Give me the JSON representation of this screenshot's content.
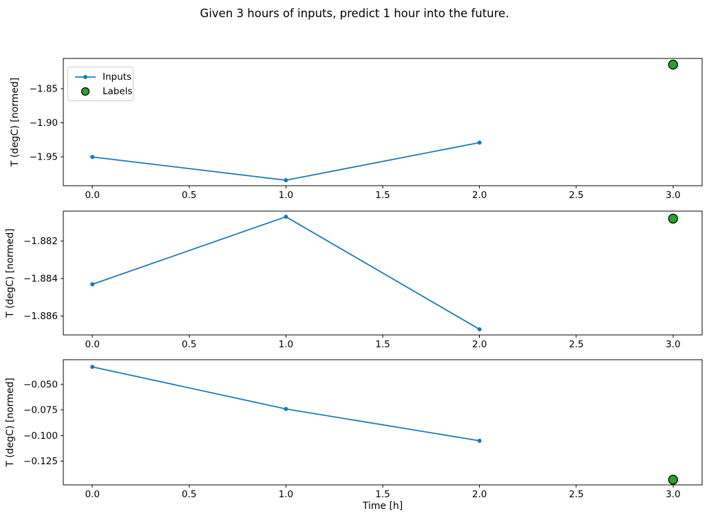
{
  "title": "Given 3 hours of inputs, predict 1 hour into the future.",
  "xlabel": "Time [h]",
  "colors": {
    "inputs_line": "#1f77b4",
    "labels_fill": "#2ca02c",
    "labels_edge": "#000000",
    "axis": "#000000"
  },
  "legend": {
    "items": [
      {
        "label": "Inputs",
        "marker": "line-with-dot"
      },
      {
        "label": "Labels",
        "marker": "circle"
      }
    ]
  },
  "chart_data": [
    {
      "type": "line",
      "panel": "top",
      "ylabel": "T (degC) [normed]",
      "x": [
        0,
        1,
        2
      ],
      "series": [
        {
          "name": "Inputs",
          "values": [
            -1.95,
            -1.984,
            -1.929
          ]
        }
      ],
      "label_point": {
        "name": "Labels",
        "x": 3,
        "y": -1.815
      },
      "xlim": [
        -0.15,
        3.15
      ],
      "ylim": [
        -1.992,
        -1.806
      ],
      "xticks": [
        0.0,
        0.5,
        1.0,
        1.5,
        2.0,
        2.5,
        3.0
      ],
      "xtick_labels": [
        "0.0",
        "0.5",
        "1.0",
        "1.5",
        "2.0",
        "2.5",
        "3.0"
      ],
      "yticks": [
        -1.85,
        -1.9,
        -1.95
      ],
      "ytick_labels": [
        "−1.85",
        "−1.90",
        "−1.95"
      ],
      "grid": false,
      "legend_position": "upper-left"
    },
    {
      "type": "line",
      "panel": "middle",
      "ylabel": "T (degC) [normed]",
      "x": [
        0,
        1,
        2
      ],
      "series": [
        {
          "name": "Inputs",
          "values": [
            -1.8843,
            -1.8807,
            -1.8867
          ]
        }
      ],
      "label_point": {
        "name": "Labels",
        "x": 3,
        "y": -1.8808
      },
      "xlim": [
        -0.15,
        3.15
      ],
      "ylim": [
        -1.887,
        -1.8804
      ],
      "xticks": [
        0.0,
        0.5,
        1.0,
        1.5,
        2.0,
        2.5,
        3.0
      ],
      "xtick_labels": [
        "0.0",
        "0.5",
        "1.0",
        "1.5",
        "2.0",
        "2.5",
        "3.0"
      ],
      "yticks": [
        -1.882,
        -1.884,
        -1.886
      ],
      "ytick_labels": [
        "−1.882",
        "−1.884",
        "−1.886"
      ],
      "grid": false
    },
    {
      "type": "line",
      "panel": "bottom",
      "ylabel": "T (degC) [normed]",
      "x": [
        0,
        1,
        2
      ],
      "series": [
        {
          "name": "Inputs",
          "values": [
            -0.033,
            -0.074,
            -0.105
          ]
        }
      ],
      "label_point": {
        "name": "Labels",
        "x": 3,
        "y": -0.143
      },
      "xlim": [
        -0.15,
        3.15
      ],
      "ylim": [
        -0.148,
        -0.026
      ],
      "xticks": [
        0.0,
        0.5,
        1.0,
        1.5,
        2.0,
        2.5,
        3.0
      ],
      "xtick_labels": [
        "0.0",
        "0.5",
        "1.0",
        "1.5",
        "2.0",
        "2.5",
        "3.0"
      ],
      "yticks": [
        -0.05,
        -0.075,
        -0.1,
        -0.125
      ],
      "ytick_labels": [
        "−0.050",
        "−0.075",
        "−0.100",
        "−0.125"
      ],
      "grid": false
    }
  ]
}
